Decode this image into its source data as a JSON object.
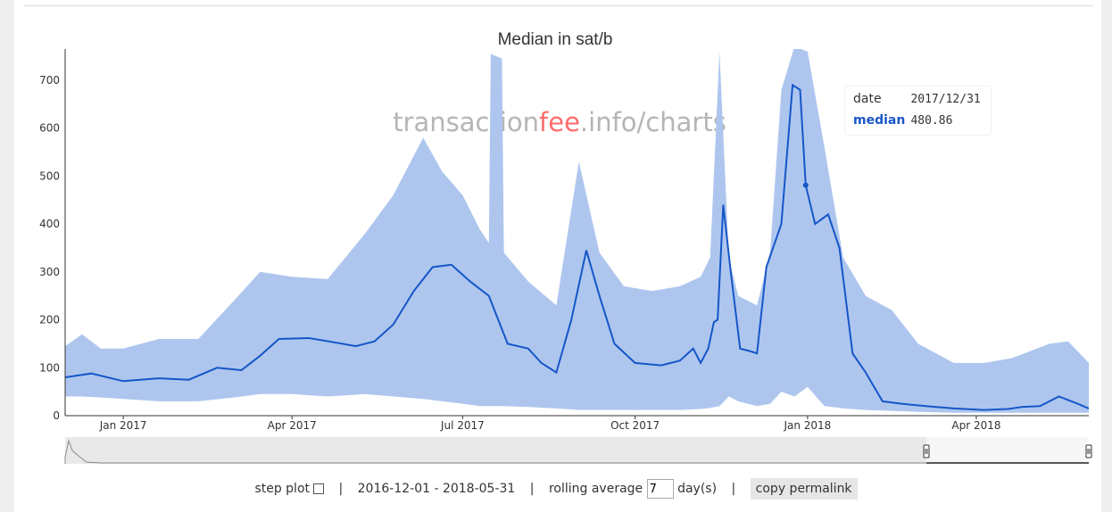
{
  "chart_data": {
    "type": "area",
    "title": "Median in sat/b",
    "watermark": [
      "transaction",
      "fee",
      ".info/charts"
    ],
    "ylim": [
      0,
      765
    ],
    "yticks": [
      0,
      100,
      200,
      300,
      400,
      500,
      600,
      700
    ],
    "xlim": [
      "2016-12-01",
      "2018-05-31"
    ],
    "xticks": [
      {
        "label": "Jan 2017",
        "date": "2017-01-01"
      },
      {
        "label": "Apr 2017",
        "date": "2017-04-01"
      },
      {
        "label": "Jul 2017",
        "date": "2017-07-01"
      },
      {
        "label": "Oct 2017",
        "date": "2017-10-01"
      },
      {
        "label": "Jan 2018",
        "date": "2018-01-01"
      },
      {
        "label": "Apr 2018",
        "date": "2018-04-01"
      }
    ],
    "series": [
      {
        "role": "band",
        "color": "#aec6ee",
        "x": [
          "2016-12-01",
          "2016-12-10",
          "2016-12-20",
          "2017-01-01",
          "2017-01-20",
          "2017-02-10",
          "2017-03-01",
          "2017-03-15",
          "2017-04-01",
          "2017-04-20",
          "2017-05-10",
          "2017-05-25",
          "2017-06-10",
          "2017-06-20",
          "2017-07-01",
          "2017-07-10",
          "2017-07-15",
          "2017-07-16",
          "2017-07-22",
          "2017-07-23",
          "2017-08-05",
          "2017-08-20",
          "2017-09-01",
          "2017-09-12",
          "2017-09-25",
          "2017-10-10",
          "2017-10-25",
          "2017-11-05",
          "2017-11-10",
          "2017-11-15",
          "2017-11-20",
          "2017-11-25",
          "2017-12-05",
          "2017-12-12",
          "2017-12-18",
          "2017-12-25",
          "2018-01-01",
          "2018-01-10",
          "2018-01-20",
          "2018-02-01",
          "2018-02-15",
          "2018-03-01",
          "2018-03-20",
          "2018-04-05",
          "2018-04-20",
          "2018-05-10",
          "2018-05-20",
          "2018-05-31"
        ],
        "upper": [
          145,
          170,
          140,
          140,
          160,
          160,
          240,
          300,
          290,
          285,
          380,
          460,
          580,
          510,
          460,
          390,
          360,
          755,
          745,
          340,
          280,
          230,
          530,
          340,
          270,
          260,
          270,
          290,
          330,
          760,
          330,
          250,
          230,
          340,
          680,
          770,
          760,
          560,
          330,
          250,
          220,
          150,
          110,
          110,
          120,
          150,
          155,
          110
        ],
        "lower": [
          40,
          40,
          38,
          35,
          30,
          30,
          38,
          45,
          45,
          40,
          45,
          40,
          35,
          30,
          25,
          20,
          20,
          20,
          20,
          20,
          18,
          15,
          12,
          12,
          12,
          12,
          12,
          14,
          16,
          20,
          40,
          30,
          20,
          25,
          50,
          40,
          60,
          20,
          15,
          12,
          10,
          8,
          6,
          6,
          6,
          6,
          6,
          6
        ]
      },
      {
        "role": "line",
        "name": "median",
        "color": "#1556c8",
        "x": [
          "2016-12-01",
          "2016-12-15",
          "2017-01-01",
          "2017-01-20",
          "2017-02-05",
          "2017-02-20",
          "2017-03-05",
          "2017-03-15",
          "2017-03-25",
          "2017-04-10",
          "2017-04-25",
          "2017-05-05",
          "2017-05-15",
          "2017-05-25",
          "2017-06-05",
          "2017-06-15",
          "2017-06-25",
          "2017-07-05",
          "2017-07-15",
          "2017-07-25",
          "2017-08-05",
          "2017-08-12",
          "2017-08-20",
          "2017-08-28",
          "2017-09-05",
          "2017-09-12",
          "2017-09-20",
          "2017-10-01",
          "2017-10-15",
          "2017-10-25",
          "2017-11-01",
          "2017-11-05",
          "2017-11-09",
          "2017-11-12",
          "2017-11-14",
          "2017-11-17",
          "2017-11-21",
          "2017-11-26",
          "2017-12-01",
          "2017-12-05",
          "2017-12-10",
          "2017-12-18",
          "2017-12-24",
          "2017-12-28",
          "2017-12-31",
          "2018-01-05",
          "2018-01-12",
          "2018-01-18",
          "2018-01-25",
          "2018-02-01",
          "2018-02-10",
          "2018-02-20",
          "2018-03-05",
          "2018-03-20",
          "2018-04-05",
          "2018-04-18",
          "2018-04-25",
          "2018-05-05",
          "2018-05-15",
          "2018-05-25",
          "2018-05-31"
        ],
        "values": [
          80,
          88,
          72,
          78,
          75,
          100,
          95,
          125,
          160,
          162,
          152,
          145,
          155,
          190,
          260,
          310,
          315,
          280,
          250,
          150,
          140,
          110,
          90,
          200,
          345,
          250,
          150,
          110,
          105,
          115,
          140,
          110,
          140,
          195,
          200,
          440,
          300,
          140,
          135,
          130,
          310,
          400,
          690,
          680,
          480.86,
          400,
          420,
          350,
          130,
          90,
          30,
          25,
          20,
          15,
          12,
          14,
          18,
          20,
          40,
          25,
          15
        ]
      }
    ],
    "hover": {
      "date_label": "date",
      "date_value": "2017/12/31",
      "series_label": "median",
      "series_value": "480.86",
      "marker_date": "2017-12-31",
      "marker_value": 480.86
    }
  },
  "controls": {
    "step_plot_label": "step plot",
    "range_text": "2016-12-01 - 2018-05-31",
    "rolling_label": "rolling average",
    "rolling_value": "7",
    "rolling_unit": "day(s)",
    "permalink_label": "copy permalink",
    "separator": "|"
  }
}
